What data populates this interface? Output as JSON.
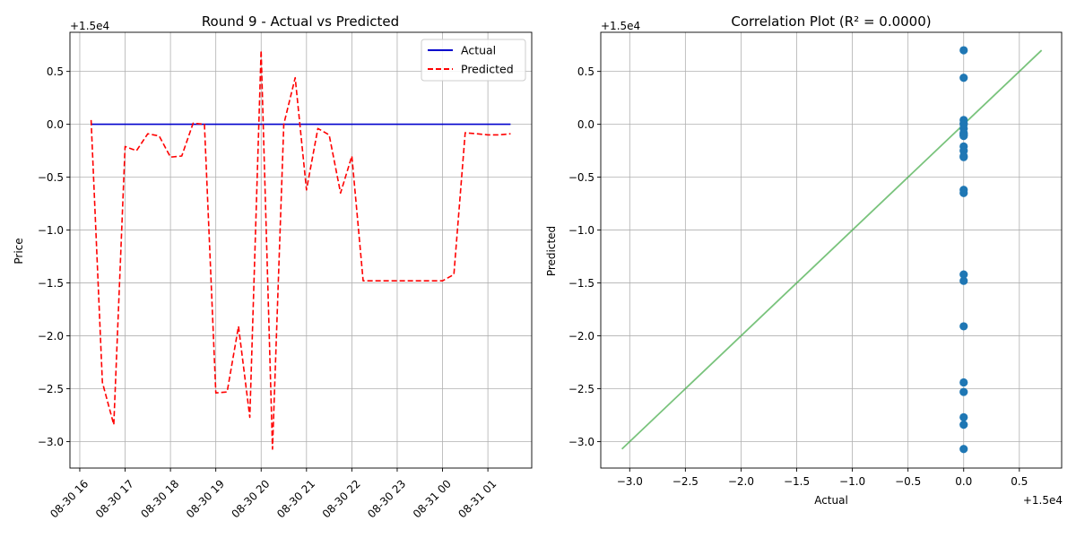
{
  "chart_data": [
    {
      "type": "line",
      "title": "Round 9 - Actual vs Predicted",
      "xlabel": "",
      "ylabel": "Price",
      "offset_label": "+1.5e4",
      "ylim": [
        -3.25,
        0.87
      ],
      "yticks": [
        0.5,
        0.0,
        -0.5,
        -1.0,
        -1.5,
        -2.0,
        -2.5,
        -3.0
      ],
      "ytick_labels": [
        "0.5",
        "0.0",
        "−0.5",
        "−1.0",
        "−1.5",
        "−2.0",
        "−2.5",
        "−3.0"
      ],
      "xlim": [
        "2025-08-30 15:47",
        "2025-08-31 01:58"
      ],
      "xticks": [
        "2025-08-30 16:00",
        "2025-08-30 17:00",
        "2025-08-30 18:00",
        "2025-08-30 19:00",
        "2025-08-30 20:00",
        "2025-08-30 21:00",
        "2025-08-30 22:00",
        "2025-08-30 23:00",
        "2025-08-31 00:00",
        "2025-08-31 01:00"
      ],
      "xtick_labels": [
        "08-30 16",
        "08-30 17",
        "08-30 18",
        "08-30 19",
        "08-30 20",
        "08-30 21",
        "08-30 22",
        "08-30 23",
        "08-31 00",
        "08-31 01"
      ],
      "grid": true,
      "legend_position": "top-right",
      "series": [
        {
          "name": "Actual",
          "color": "#0000cc",
          "style": "solid",
          "x": [
            "2025-08-30 16:15",
            "2025-08-31 01:30"
          ],
          "values": [
            0.0,
            0.0
          ]
        },
        {
          "name": "Predicted",
          "color": "#ff0000",
          "style": "dashed",
          "x": [
            "2025-08-30 16:15",
            "2025-08-30 16:30",
            "2025-08-30 16:45",
            "2025-08-30 17:00",
            "2025-08-30 17:15",
            "2025-08-30 17:30",
            "2025-08-30 17:45",
            "2025-08-30 18:00",
            "2025-08-30 18:15",
            "2025-08-30 18:30",
            "2025-08-30 18:45",
            "2025-08-30 19:00",
            "2025-08-30 19:15",
            "2025-08-30 19:30",
            "2025-08-30 19:45",
            "2025-08-30 20:00",
            "2025-08-30 20:15",
            "2025-08-30 20:30",
            "2025-08-30 20:45",
            "2025-08-30 21:00",
            "2025-08-30 21:15",
            "2025-08-30 21:30",
            "2025-08-30 21:45",
            "2025-08-30 22:00",
            "2025-08-30 22:15",
            "2025-08-30 22:30",
            "2025-08-30 22:45",
            "2025-08-30 23:00",
            "2025-08-30 23:15",
            "2025-08-30 23:30",
            "2025-08-30 23:45",
            "2025-08-31 00:00",
            "2025-08-31 00:15",
            "2025-08-31 00:30",
            "2025-08-31 00:45",
            "2025-08-31 01:00",
            "2025-08-31 01:15",
            "2025-08-31 01:30"
          ],
          "values": [
            0.04,
            -2.44,
            -2.84,
            -0.21,
            -0.25,
            -0.09,
            -0.11,
            -0.31,
            -0.3,
            0.01,
            0.0,
            -2.54,
            -2.53,
            -1.91,
            -2.77,
            0.7,
            -3.07,
            0.0,
            0.44,
            -0.62,
            -0.04,
            -0.1,
            -0.65,
            -0.3,
            -1.48,
            -1.48,
            -1.48,
            -1.48,
            -1.48,
            -1.48,
            -1.48,
            -1.48,
            -1.42,
            -0.08,
            -0.09,
            -0.1,
            -0.1,
            -0.09
          ]
        }
      ]
    },
    {
      "type": "scatter",
      "title": "Correlation Plot (R² = 0.0000)",
      "xlabel": "Actual",
      "ylabel": "Predicted",
      "x_offset_label": "+1.5e4",
      "y_offset_label": "+1.5e4",
      "xlim": [
        -3.26,
        0.88
      ],
      "ylim": [
        -3.25,
        0.87
      ],
      "xticks": [
        -3.0,
        -2.5,
        -2.0,
        -1.5,
        -1.0,
        -0.5,
        0.0,
        0.5
      ],
      "xtick_labels": [
        "−3.0",
        "−2.5",
        "−2.0",
        "−1.5",
        "−1.0",
        "−0.5",
        "0.0",
        "0.5"
      ],
      "yticks": [
        0.5,
        0.0,
        -0.5,
        -1.0,
        -1.5,
        -2.0,
        -2.5,
        -3.0
      ],
      "ytick_labels": [
        "0.5",
        "0.0",
        "−0.5",
        "−1.0",
        "−1.5",
        "−2.0",
        "−2.5",
        "−3.0"
      ],
      "grid": true,
      "point_color": "#1f77b4",
      "line_color": "#4caf50",
      "points": {
        "x": [
          0,
          0,
          0,
          0,
          0,
          0,
          0,
          0,
          0,
          0,
          0,
          0,
          0,
          0,
          0,
          0,
          0,
          0,
          0,
          0,
          0,
          0,
          0,
          0
        ],
        "y": [
          0.7,
          0.44,
          0.04,
          0.01,
          0.0,
          -0.04,
          -0.08,
          -0.09,
          -0.1,
          -0.11,
          -0.21,
          -0.25,
          -0.3,
          -0.31,
          -0.62,
          -0.65,
          -1.42,
          -1.48,
          -1.91,
          -2.44,
          -2.53,
          -2.77,
          -2.84,
          -3.07
        ]
      },
      "reference_line": {
        "x": [
          -3.07,
          0.7
        ],
        "y": [
          -3.07,
          0.7
        ]
      }
    }
  ]
}
